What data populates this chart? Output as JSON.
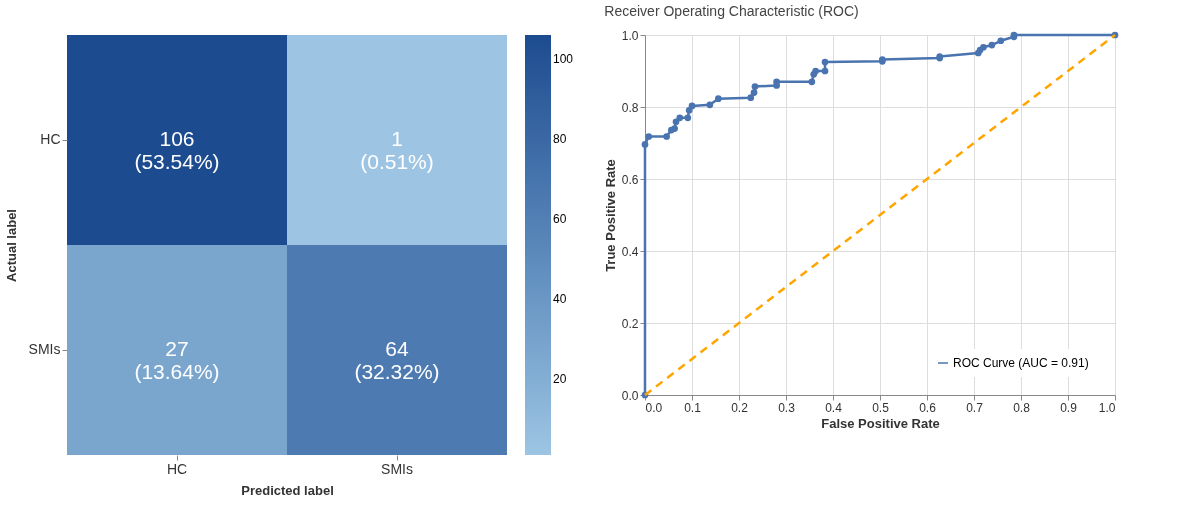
{
  "chart_data": [
    {
      "type": "heatmap",
      "xlabel": "Predicted label",
      "ylabel": "Actual label",
      "categories": [
        "HC",
        "SMIs"
      ],
      "y_categories": [
        "HC",
        "SMIs"
      ],
      "cells": [
        [
          106,
          1
        ],
        [
          27,
          64
        ]
      ],
      "cell_labels": [
        [
          "106\n(53.54%)",
          "1\n(0.51%)"
        ],
        [
          "27\n(13.64%)",
          "64\n(32.32%)"
        ]
      ],
      "clim": [
        1,
        106
      ],
      "cticks": [
        20,
        40,
        60,
        80,
        100
      ]
    },
    {
      "type": "line",
      "title": "Receiver Operating Characteristic (ROC)",
      "xlabel": "False Positive Rate",
      "ylabel": "True Positive Rate",
      "series": [
        {
          "name": "ROC Curve (AUC = 0.91)",
          "color": "#4a74b0",
          "marker": "circle",
          "line_style": "solid",
          "x": [
            0,
            0,
            0.008,
            0.046,
            0.056,
            0.063,
            0.066,
            0.074,
            0.091,
            0.094,
            0.1,
            0.138,
            0.156,
            0.225,
            0.232,
            0.234,
            0.28,
            0.28,
            0.355,
            0.359,
            0.363,
            0.383,
            0.383,
            0.505,
            0.505,
            0.627,
            0.627,
            0.709,
            0.713,
            0.72,
            0.738,
            0.757,
            0.785,
            0.785,
            1.0
          ],
          "values": [
            0,
            0.696,
            0.718,
            0.718,
            0.736,
            0.74,
            0.759,
            0.77,
            0.77,
            0.791,
            0.803,
            0.806,
            0.823,
            0.826,
            0.84,
            0.857,
            0.86,
            0.87,
            0.87,
            0.891,
            0.9,
            0.9,
            0.925,
            0.927,
            0.932,
            0.936,
            0.94,
            0.95,
            0.958,
            0.966,
            0.972,
            0.984,
            0.995,
            1.0,
            1.0
          ]
        },
        {
          "color": "#ffa500",
          "marker": "none",
          "line_style": "dashed",
          "x": [
            0,
            1
          ],
          "values": [
            0,
            1
          ]
        }
      ],
      "xlim": [
        0,
        1
      ],
      "ylim": [
        0,
        1
      ],
      "xticks": [
        {
          "value": 0,
          "label": "0.0"
        },
        0.1,
        0.2,
        0.3,
        0.4,
        0.5,
        0.6,
        0.7,
        0.8,
        0.9,
        {
          "value": 1,
          "label": "1.0"
        }
      ],
      "yticks": [
        {
          "value": 0,
          "label": "0.0"
        },
        0.2,
        0.4,
        0.6,
        0.8,
        {
          "value": 1,
          "label": "1.0"
        }
      ],
      "grid": true,
      "legend": "bottom right"
    }
  ]
}
